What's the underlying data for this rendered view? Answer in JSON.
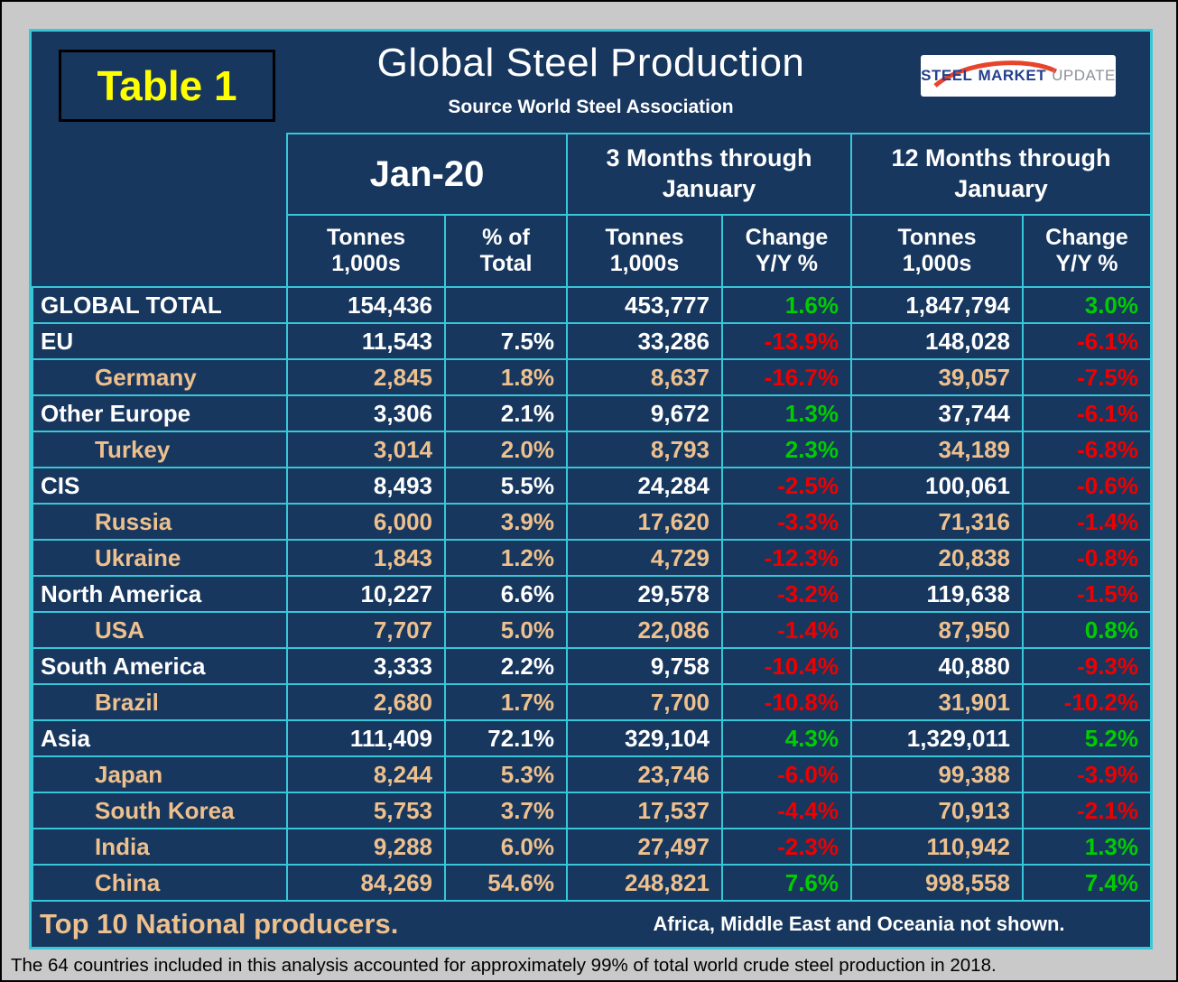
{
  "page": {
    "badge": "Table 1",
    "title": "Global Steel Production",
    "subtitle": "Source World Steel Association",
    "logo": {
      "word1": "STEEL",
      "word2": "MARKET",
      "word3": "UPDATE"
    }
  },
  "footer": {
    "left": "Top 10 National producers.",
    "right": "Africa, Middle East and Oceania not shown."
  },
  "caption": "The 64 countries included in this analysis accounted for approximately 99% of total world crude steel production in 2018.",
  "colors": {
    "bg": "#17375e",
    "grid": "#38c7d8",
    "tan": "#eec08e",
    "positive": "#00cd00",
    "negative": "#ee0000",
    "badge": "#ffff00"
  },
  "chart_data": {
    "type": "table",
    "title": "Global Steel Production",
    "source": "World Steel Association",
    "column_groups": [
      {
        "label": "Jan-20",
        "columns": [
          "Tonnes\n1,000s",
          "% of\nTotal"
        ]
      },
      {
        "label": "3 Months through\nJanuary",
        "columns": [
          "Tonnes\n1,000s",
          "Change\nY/Y %"
        ]
      },
      {
        "label": "12 Months through\nJanuary",
        "columns": [
          "Tonnes\n1,000s",
          "Change\nY/Y %"
        ]
      }
    ],
    "rows": [
      {
        "label": "GLOBAL TOTAL",
        "indent": false,
        "jan_tonnes": "154,436",
        "jan_pct": "",
        "m3_tonnes": "453,777",
        "m3_change": "1.6%",
        "m12_tonnes": "1,847,794",
        "m12_change": "3.0%"
      },
      {
        "label": "EU",
        "indent": false,
        "jan_tonnes": "11,543",
        "jan_pct": "7.5%",
        "m3_tonnes": "33,286",
        "m3_change": "-13.9%",
        "m12_tonnes": "148,028",
        "m12_change": "-6.1%"
      },
      {
        "label": "Germany",
        "indent": true,
        "jan_tonnes": "2,845",
        "jan_pct": "1.8%",
        "m3_tonnes": "8,637",
        "m3_change": "-16.7%",
        "m12_tonnes": "39,057",
        "m12_change": "-7.5%"
      },
      {
        "label": "Other Europe",
        "indent": false,
        "jan_tonnes": "3,306",
        "jan_pct": "2.1%",
        "m3_tonnes": "9,672",
        "m3_change": "1.3%",
        "m12_tonnes": "37,744",
        "m12_change": "-6.1%"
      },
      {
        "label": "Turkey",
        "indent": true,
        "jan_tonnes": "3,014",
        "jan_pct": "2.0%",
        "m3_tonnes": "8,793",
        "m3_change": "2.3%",
        "m12_tonnes": "34,189",
        "m12_change": "-6.8%"
      },
      {
        "label": "CIS",
        "indent": false,
        "jan_tonnes": "8,493",
        "jan_pct": "5.5%",
        "m3_tonnes": "24,284",
        "m3_change": "-2.5%",
        "m12_tonnes": "100,061",
        "m12_change": "-0.6%"
      },
      {
        "label": "Russia",
        "indent": true,
        "jan_tonnes": "6,000",
        "jan_pct": "3.9%",
        "m3_tonnes": "17,620",
        "m3_change": "-3.3%",
        "m12_tonnes": "71,316",
        "m12_change": "-1.4%"
      },
      {
        "label": "Ukraine",
        "indent": true,
        "jan_tonnes": "1,843",
        "jan_pct": "1.2%",
        "m3_tonnes": "4,729",
        "m3_change": "-12.3%",
        "m12_tonnes": "20,838",
        "m12_change": "-0.8%"
      },
      {
        "label": "North America",
        "indent": false,
        "jan_tonnes": "10,227",
        "jan_pct": "6.6%",
        "m3_tonnes": "29,578",
        "m3_change": "-3.2%",
        "m12_tonnes": "119,638",
        "m12_change": "-1.5%"
      },
      {
        "label": "USA",
        "indent": true,
        "jan_tonnes": "7,707",
        "jan_pct": "5.0%",
        "m3_tonnes": "22,086",
        "m3_change": "-1.4%",
        "m12_tonnes": "87,950",
        "m12_change": "0.8%"
      },
      {
        "label": "South America",
        "indent": false,
        "jan_tonnes": "3,333",
        "jan_pct": "2.2%",
        "m3_tonnes": "9,758",
        "m3_change": "-10.4%",
        "m12_tonnes": "40,880",
        "m12_change": "-9.3%"
      },
      {
        "label": "Brazil",
        "indent": true,
        "jan_tonnes": "2,680",
        "jan_pct": "1.7%",
        "m3_tonnes": "7,700",
        "m3_change": "-10.8%",
        "m12_tonnes": "31,901",
        "m12_change": "-10.2%"
      },
      {
        "label": "Asia",
        "indent": false,
        "jan_tonnes": "111,409",
        "jan_pct": "72.1%",
        "m3_tonnes": "329,104",
        "m3_change": "4.3%",
        "m12_tonnes": "1,329,011",
        "m12_change": "5.2%"
      },
      {
        "label": "Japan",
        "indent": true,
        "jan_tonnes": "8,244",
        "jan_pct": "5.3%",
        "m3_tonnes": "23,746",
        "m3_change": "-6.0%",
        "m12_tonnes": "99,388",
        "m12_change": "-3.9%"
      },
      {
        "label": "South Korea",
        "indent": true,
        "jan_tonnes": "5,753",
        "jan_pct": "3.7%",
        "m3_tonnes": "17,537",
        "m3_change": "-4.4%",
        "m12_tonnes": "70,913",
        "m12_change": "-2.1%"
      },
      {
        "label": "India",
        "indent": true,
        "jan_tonnes": "9,288",
        "jan_pct": "6.0%",
        "m3_tonnes": "27,497",
        "m3_change": "-2.3%",
        "m12_tonnes": "110,942",
        "m12_change": "1.3%"
      },
      {
        "label": "China",
        "indent": true,
        "jan_tonnes": "84,269",
        "jan_pct": "54.6%",
        "m3_tonnes": "248,821",
        "m3_change": "7.6%",
        "m12_tonnes": "998,558",
        "m12_change": "7.4%"
      }
    ]
  }
}
